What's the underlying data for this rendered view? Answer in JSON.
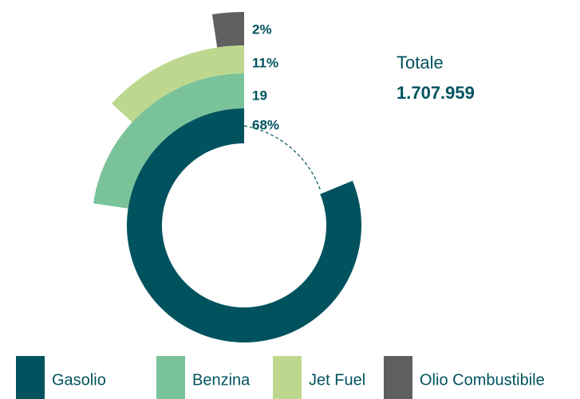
{
  "chart_data": {
    "type": "radial_bar",
    "categories": [
      "Gasolio",
      "Benzina",
      "Jet Fuel",
      "Olio Combustibile"
    ],
    "values": [
      68,
      19,
      11,
      2
    ],
    "value_labels": [
      "68%",
      "19",
      "11%",
      "2%"
    ],
    "colors": [
      "#00535e",
      "#7ac29a",
      "#bdd88e",
      "#5f5f60"
    ],
    "total_label": "Totale",
    "total_value": "1.707.959"
  }
}
